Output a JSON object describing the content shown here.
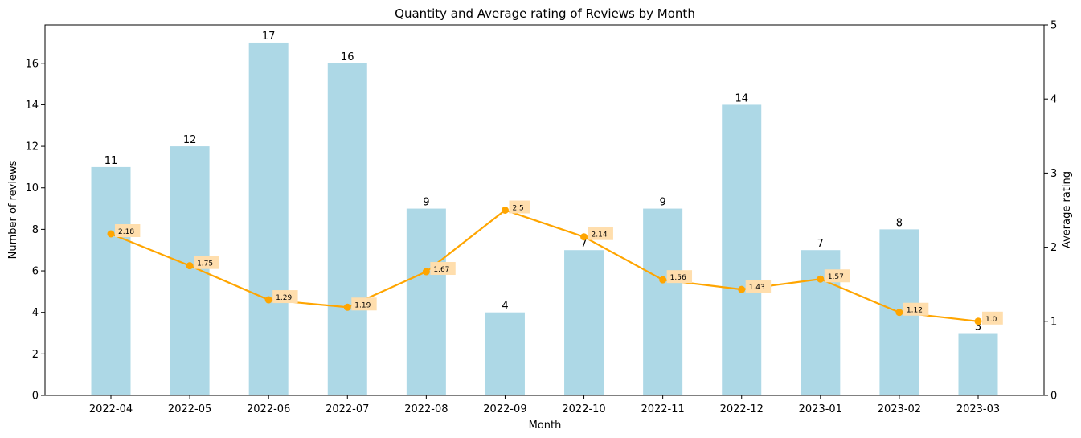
{
  "chart_data": {
    "type": "bar",
    "title": "Quantity and Average rating of Reviews by Month",
    "xlabel": "Month",
    "ylabel": "Number of reviews",
    "y2label": "Average rating",
    "categories": [
      "2022-04",
      "2022-05",
      "2022-06",
      "2022-07",
      "2022-08",
      "2022-09",
      "2022-10",
      "2022-11",
      "2022-12",
      "2023-01",
      "2023-02",
      "2023-03"
    ],
    "ylim": [
      0,
      17.85
    ],
    "y2lim": [
      0,
      5
    ],
    "yticks": [
      0,
      2,
      4,
      6,
      8,
      10,
      12,
      14,
      16
    ],
    "y2ticks": [
      0,
      1,
      2,
      3,
      4,
      5
    ],
    "grid": false,
    "series": [
      {
        "type": "bar",
        "axis": "left",
        "color": "#add8e6",
        "values": [
          11,
          12,
          17,
          16,
          9,
          4,
          7,
          9,
          14,
          7,
          8,
          3
        ]
      },
      {
        "type": "line",
        "axis": "right",
        "color": "#ffa500",
        "label_bg": "#ffdead",
        "values": [
          2.18,
          1.75,
          1.29,
          1.19,
          1.67,
          2.5,
          2.14,
          1.56,
          1.43,
          1.57,
          1.12,
          1.0
        ],
        "labels": [
          "2.18",
          "1.75",
          "1.29",
          "1.19",
          "1.67",
          "2.5",
          "2.14",
          "1.56",
          "1.43",
          "1.57",
          "1.12",
          "1.0"
        ]
      }
    ]
  }
}
